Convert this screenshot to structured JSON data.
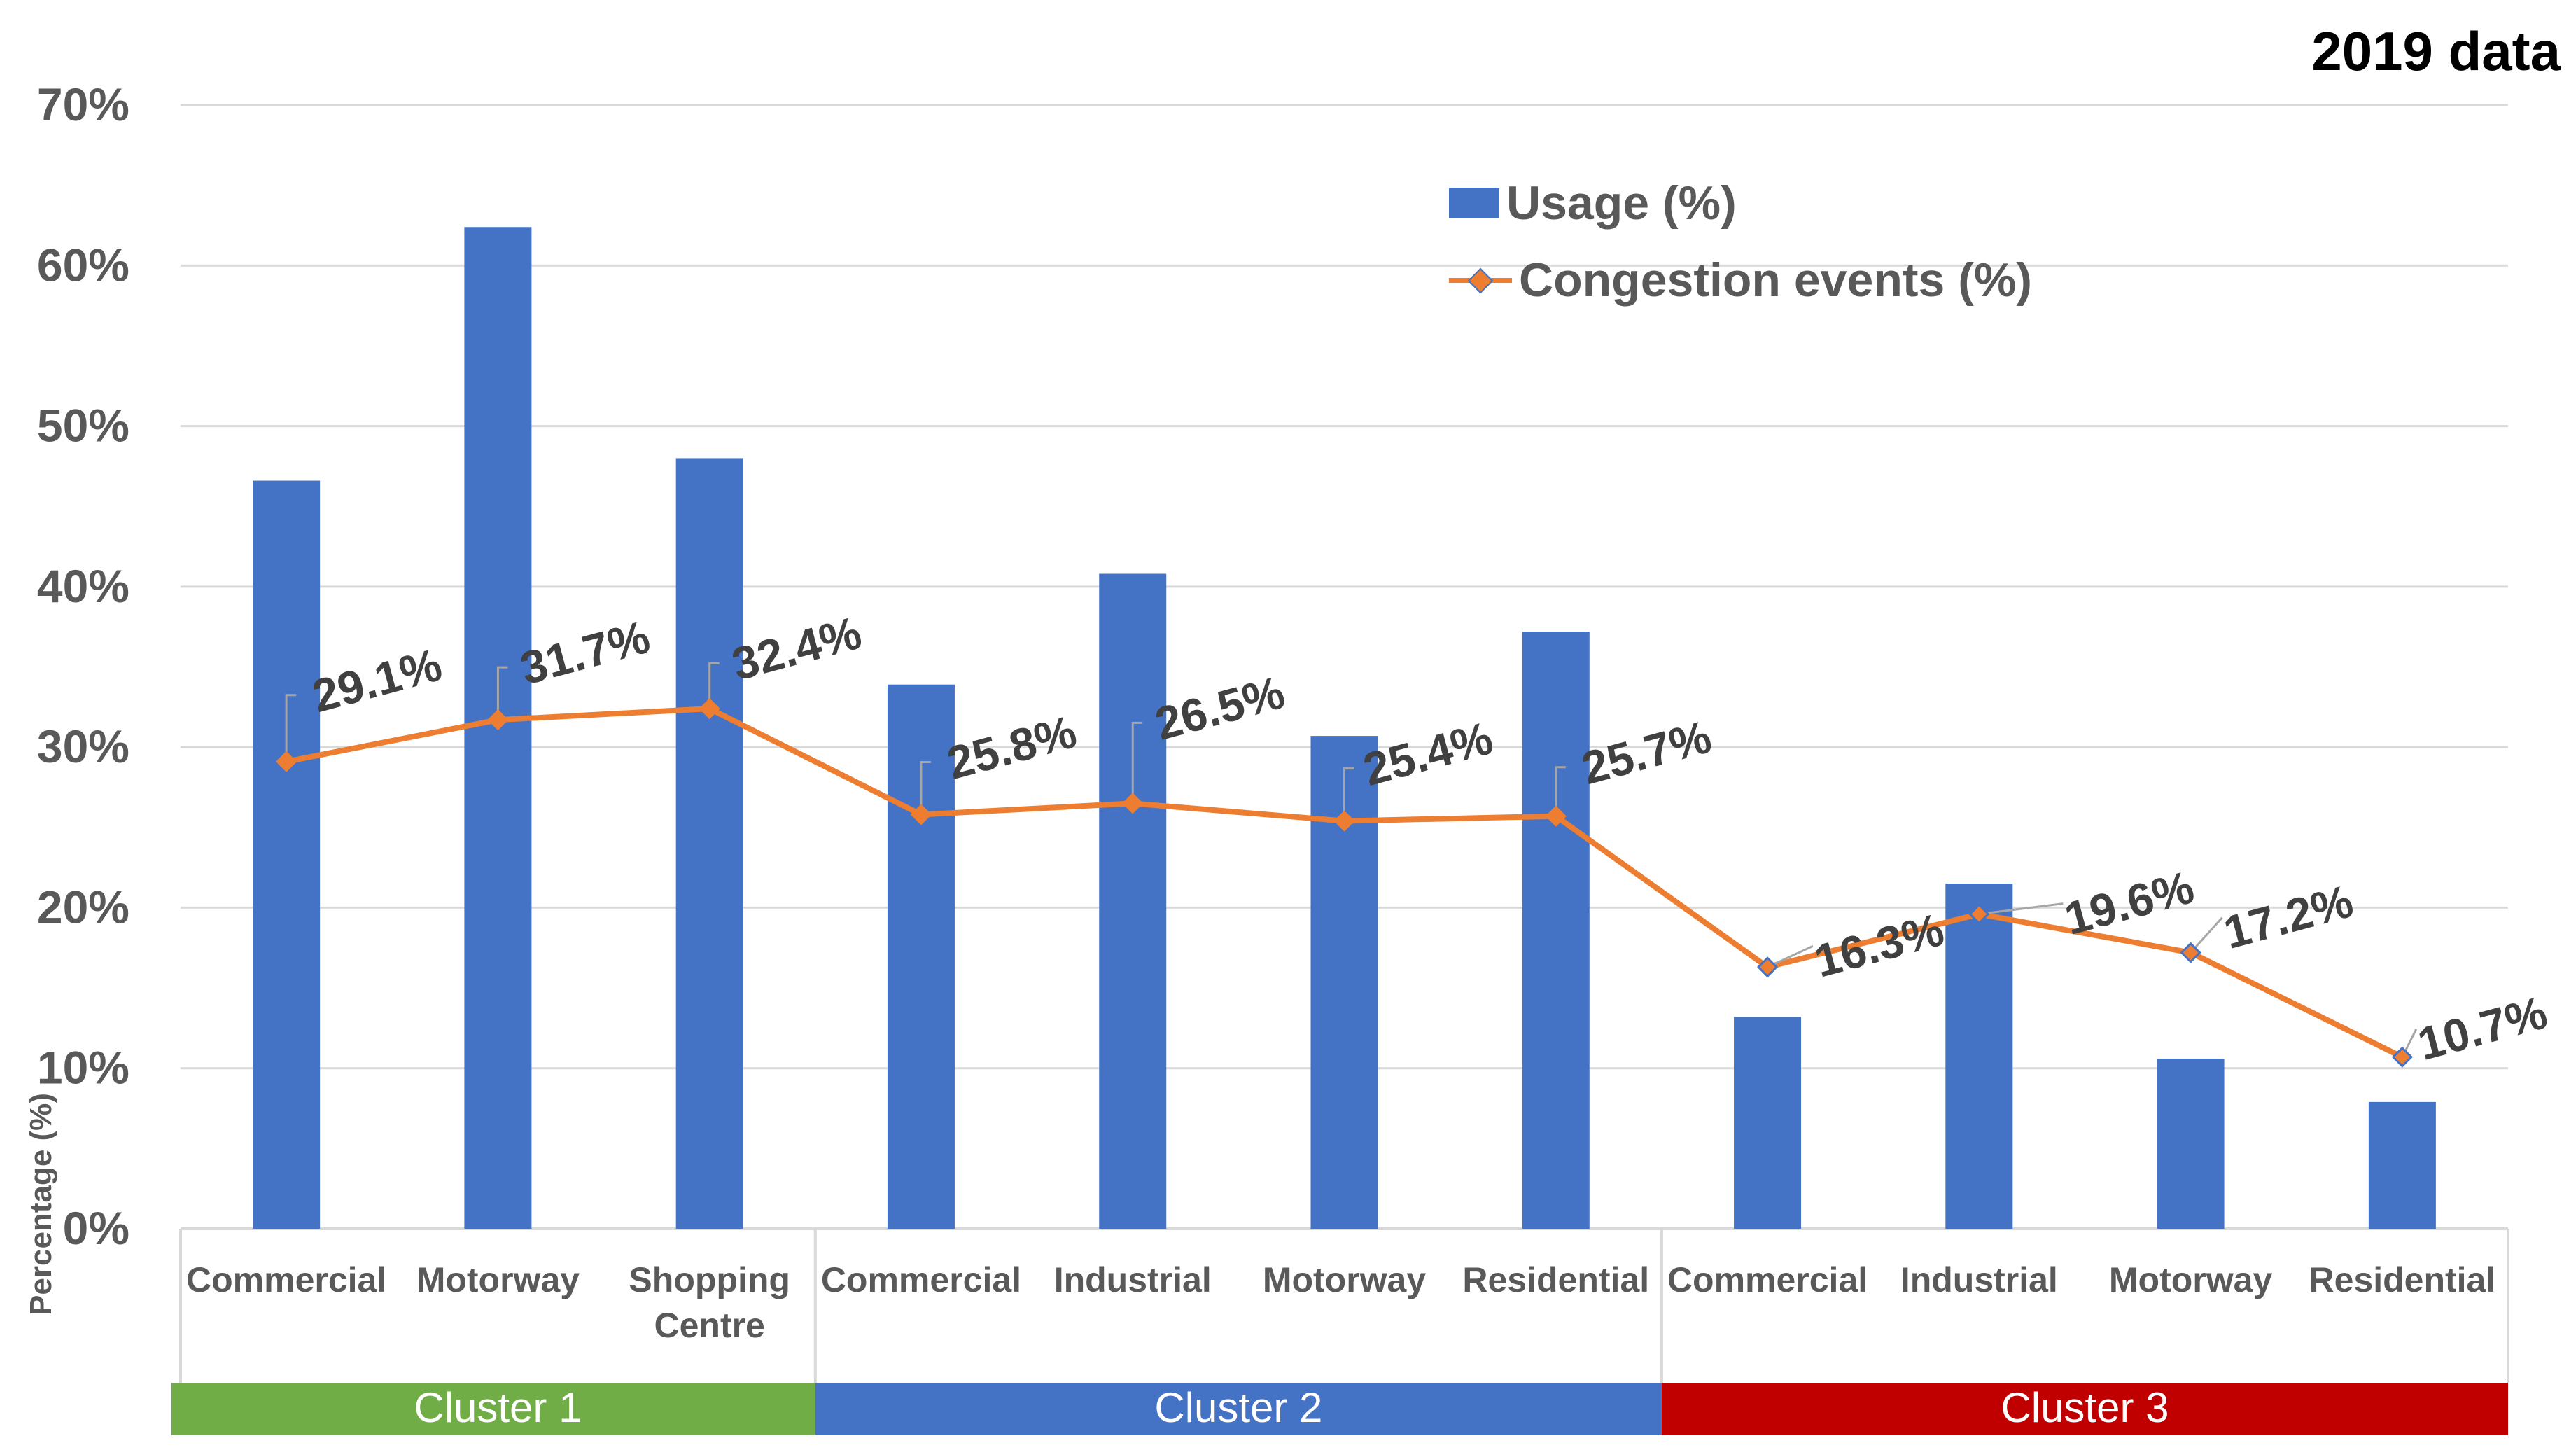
{
  "corner_title": "2019 data",
  "colors": {
    "bar": "#4472C4",
    "line": "#ED7D31",
    "grid": "#D9D9D9",
    "axis_text": "#595959",
    "label_text": "#404040",
    "cluster_1": "#70AD47",
    "cluster_2": "#4472C4",
    "cluster_3": "#C00000"
  },
  "legend": {
    "usage": "Usage (%)",
    "congestion": "Congestion events (%)"
  },
  "chart_data": {
    "type": "bar",
    "title": "2019 data",
    "xlabel": "",
    "ylabel": "Percentage (%)",
    "ylim": [
      0,
      70
    ],
    "yticks": [
      "0%",
      "10%",
      "20%",
      "30%",
      "40%",
      "50%",
      "60%",
      "70%"
    ],
    "grid": true,
    "legend_position": "top-right",
    "categories": [
      [
        "Commercial"
      ],
      [
        "Motorway"
      ],
      [
        "Shopping",
        "Centre"
      ],
      [
        "Commercial"
      ],
      [
        "Industrial"
      ],
      [
        "Motorway"
      ],
      [
        "Residential"
      ],
      [
        "Commercial"
      ],
      [
        "Industrial"
      ],
      [
        "Motorway"
      ],
      [
        "Residential"
      ]
    ],
    "groups": [
      {
        "label": "Cluster 1",
        "count": 3
      },
      {
        "label": "Cluster 2",
        "count": 4
      },
      {
        "label": "Cluster 3",
        "count": 4
      }
    ],
    "series": [
      {
        "name": "Usage (%)",
        "type": "bar",
        "values": [
          46.6,
          62.4,
          48.0,
          33.9,
          40.8,
          30.7,
          37.2,
          13.2,
          21.5,
          10.6,
          7.9
        ]
      },
      {
        "name": "Congestion events (%)",
        "type": "line",
        "values": [
          29.1,
          31.7,
          32.4,
          25.8,
          26.5,
          25.4,
          25.7,
          16.3,
          19.6,
          17.2,
          10.7
        ],
        "data_labels": [
          "29.1%",
          "31.7%",
          "32.4%",
          "25.8%",
          "26.5%",
          "25.4%",
          "25.7%",
          "16.3%",
          "19.6%",
          "17.2%",
          "10.7%"
        ]
      }
    ]
  }
}
